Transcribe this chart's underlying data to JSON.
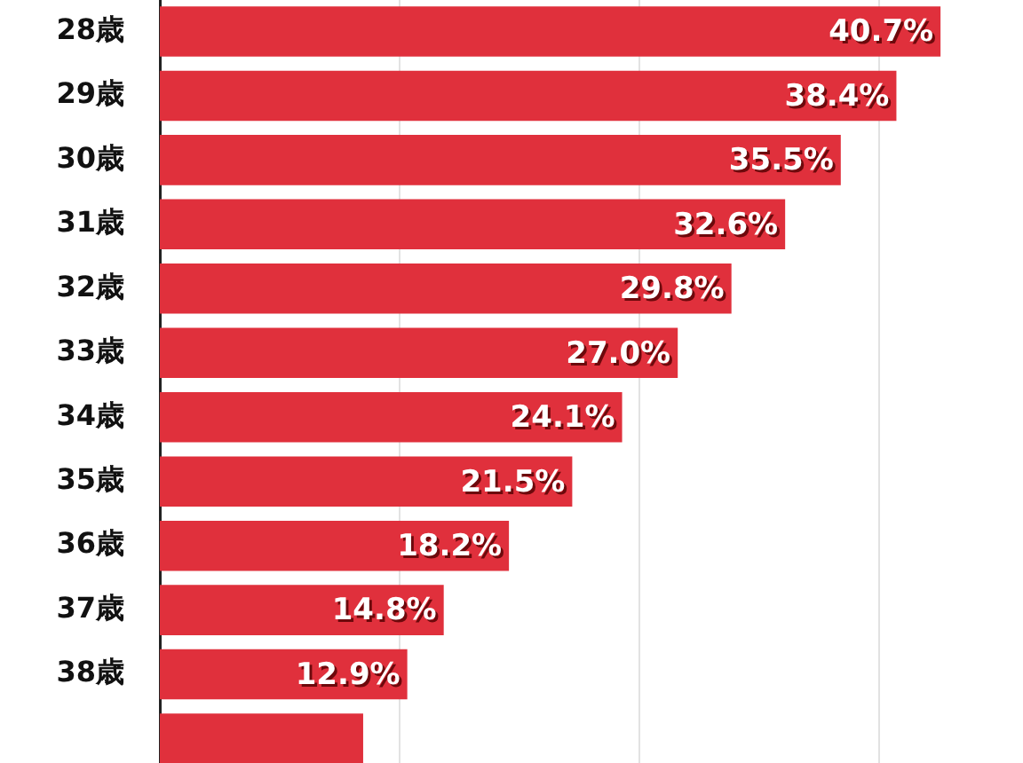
{
  "chart_data": {
    "type": "bar",
    "orientation": "horizontal",
    "categories": [
      "28歳",
      "29歳",
      "30歳",
      "31歳",
      "32歳",
      "33歳",
      "34歳",
      "35歳",
      "36歳",
      "37歳",
      "38歳",
      null
    ],
    "values": [
      40.7,
      38.4,
      35.5,
      32.6,
      29.8,
      27.0,
      24.1,
      21.5,
      18.2,
      14.8,
      12.9,
      10.6
    ],
    "value_labels": [
      "40.7%",
      "38.4%",
      "35.5%",
      "32.6%",
      "29.8%",
      "27.0%",
      "24.1%",
      "21.5%",
      "18.2%",
      "14.8%",
      "12.9%",
      null
    ],
    "color": "#e0303c",
    "xticks": [
      {
        "value": 12.5,
        "label": null
      },
      {
        "value": 25,
        "label": null
      },
      {
        "value": 37.5,
        "label": null
      }
    ],
    "grid": "x"
  }
}
